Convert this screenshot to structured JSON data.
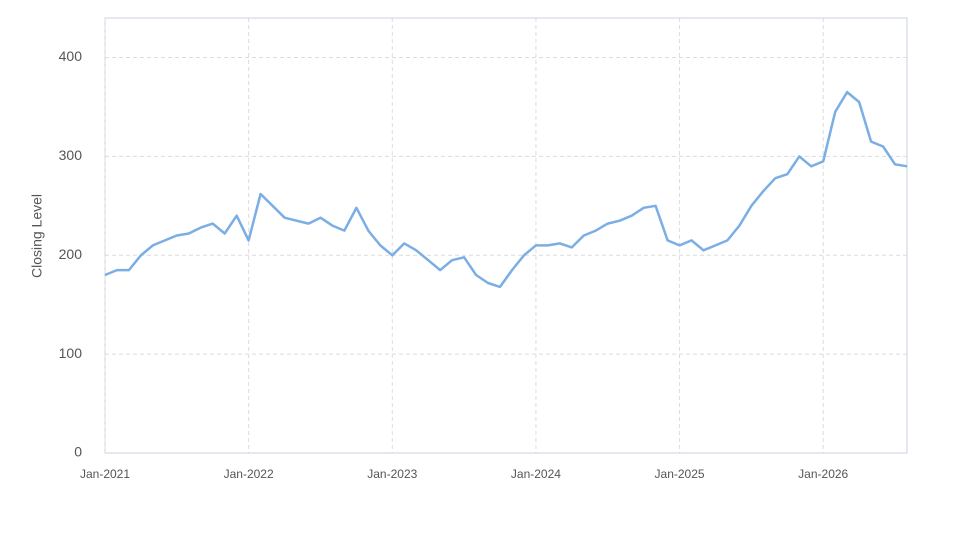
{
  "chart_data": {
    "type": "line",
    "y_label": "Closing Level",
    "x": [
      "2021-01",
      "2021-02",
      "2021-03",
      "2021-04",
      "2021-05",
      "2021-06",
      "2021-07",
      "2021-08",
      "2021-09",
      "2021-10",
      "2021-11",
      "2021-12",
      "2022-01",
      "2022-02",
      "2022-03",
      "2022-04",
      "2022-05",
      "2022-06",
      "2022-07",
      "2022-08",
      "2022-09",
      "2022-10",
      "2022-11",
      "2022-12",
      "2023-01",
      "2023-02",
      "2023-03",
      "2023-04",
      "2023-05",
      "2023-06",
      "2023-07",
      "2023-08",
      "2023-09",
      "2023-10",
      "2023-11",
      "2023-12",
      "2024-01",
      "2024-02",
      "2024-03",
      "2024-04",
      "2024-05",
      "2024-06",
      "2024-07",
      "2024-08",
      "2024-09",
      "2024-10",
      "2024-11",
      "2024-12",
      "2025-01",
      "2025-02",
      "2025-03",
      "2025-04",
      "2025-05",
      "2025-06",
      "2025-07",
      "2025-08",
      "2025-09",
      "2025-10",
      "2025-11",
      "2025-12",
      "2026-01",
      "2026-02",
      "2026-03",
      "2026-04",
      "2026-05",
      "2026-06",
      "2026-07",
      "2026-08"
    ],
    "series": [
      {
        "color": "#7aaee4",
        "values": [
          180,
          185,
          185,
          200,
          210,
          215,
          220,
          222,
          228,
          232,
          222,
          240,
          215,
          262,
          250,
          238,
          235,
          232,
          238,
          230,
          225,
          248,
          225,
          210,
          200,
          212,
          205,
          195,
          185,
          195,
          198,
          180,
          172,
          168,
          185,
          200,
          210,
          210,
          212,
          208,
          220,
          225,
          232,
          235,
          240,
          248,
          250,
          215,
          210,
          215,
          205,
          210,
          215,
          230,
          250,
          265,
          278,
          282,
          300,
          290,
          295,
          345,
          365,
          355,
          315,
          310,
          292,
          290
        ]
      }
    ],
    "xlim": [
      "2021-01",
      "2026-08"
    ],
    "xticks": [
      {
        "value": "2021-01",
        "label": "Jan-2021"
      },
      {
        "value": "2022-01",
        "label": "Jan-2022"
      },
      {
        "value": "2023-01",
        "label": "Jan-2023"
      },
      {
        "value": "2024-01",
        "label": "Jan-2024"
      },
      {
        "value": "2025-01",
        "label": "Jan-2025"
      },
      {
        "value": "2026-01",
        "label": "Jan-2026"
      }
    ],
    "ylim": [
      0,
      440
    ],
    "yticks": [
      0,
      100,
      200,
      300,
      400
    ],
    "grid": true
  }
}
